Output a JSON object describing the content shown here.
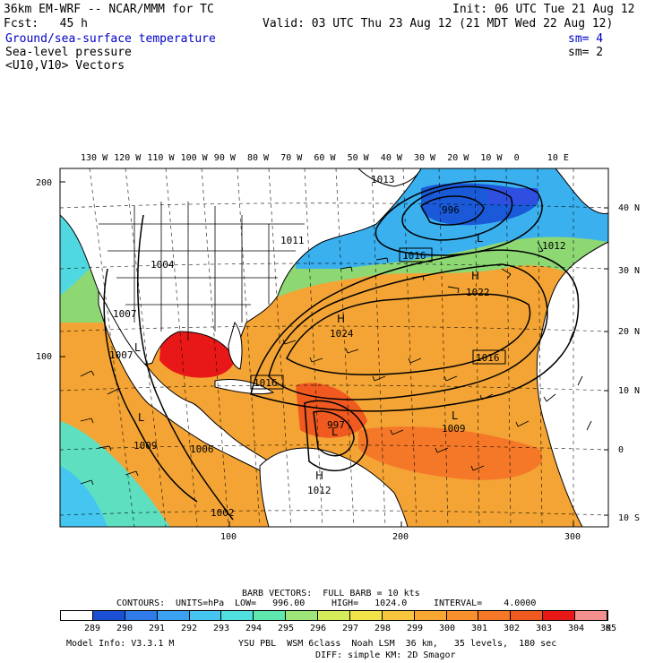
{
  "header": {
    "model": "36km EM-WRF -- NCAR/MMM for TC",
    "init": "Init: 06 UTC Tue 21 Aug 12",
    "fcst": "Fcst:   45 h",
    "valid": "Valid: 03 UTC Thu 23 Aug 12 (21 MDT Wed 22 Aug 12)",
    "fields": [
      {
        "name": "Ground/sea-surface temperature",
        "sm": "sm= 4"
      },
      {
        "name": "Sea-level pressure",
        "sm": "sm= 2"
      },
      {
        "name": "<U10,V10> Vectors",
        "sm": ""
      }
    ]
  },
  "map": {
    "lon_labels": [
      "130 W",
      "120 W",
      "110 W",
      "100 W",
      "90 W",
      "80 W",
      "70 W",
      "60 W",
      "50 W",
      "40 W",
      "30 W",
      "20 W",
      "10 W",
      "0",
      "10 E"
    ],
    "lat_labels_right": [
      "40 N",
      "30 N",
      "20 N",
      "10 N",
      "0",
      "10 S"
    ],
    "left_ticks": [
      "200",
      "100"
    ],
    "bottom_ticks": [
      "100",
      "200",
      "300"
    ],
    "pressure_labels": [
      "1013",
      "1011",
      "1004",
      "1007",
      "1007",
      "1024",
      "1016",
      "1016",
      "1022",
      "1012",
      "1016",
      "1009",
      "1009",
      "1006",
      "1012",
      "1002",
      "997",
      "996"
    ],
    "highs_lows": [
      "H",
      "H",
      "H",
      "L",
      "L",
      "L",
      "L",
      "L"
    ]
  },
  "footer": {
    "barb": "BARB VECTORS:  FULL BARB = 10 kts",
    "contours_label": "CONTOURS:",
    "units": "UNITS=hPa",
    "low": "LOW=   996.00",
    "high": "HIGH=   1024.0",
    "interval": "INTERVAL=    4.0000",
    "unit_k": "K",
    "colorbar": {
      "labels": [
        "289",
        "290",
        "291",
        "292",
        "293",
        "294",
        "295",
        "296",
        "297",
        "298",
        "299",
        "300",
        "301",
        "302",
        "303",
        "304",
        "305"
      ],
      "colors": [
        "#ffffff",
        "#1a4fd6",
        "#2f7bea",
        "#3aa2f0",
        "#45c6f0",
        "#50e0e0",
        "#5ee8b0",
        "#9ee67a",
        "#d4ec5a",
        "#f2e24a",
        "#f8c63c",
        "#f8a832",
        "#f8902e",
        "#f47828",
        "#f05a20",
        "#e81818",
        "#f49090"
      ]
    },
    "model_info": "Model Info: V3.3.1 M",
    "physics1": "YSU PBL  WSM 6class  Noah LSM  36 km,   35 levels,  180 sec",
    "physics2": "DIFF: simple KM: 2D Smagor"
  }
}
